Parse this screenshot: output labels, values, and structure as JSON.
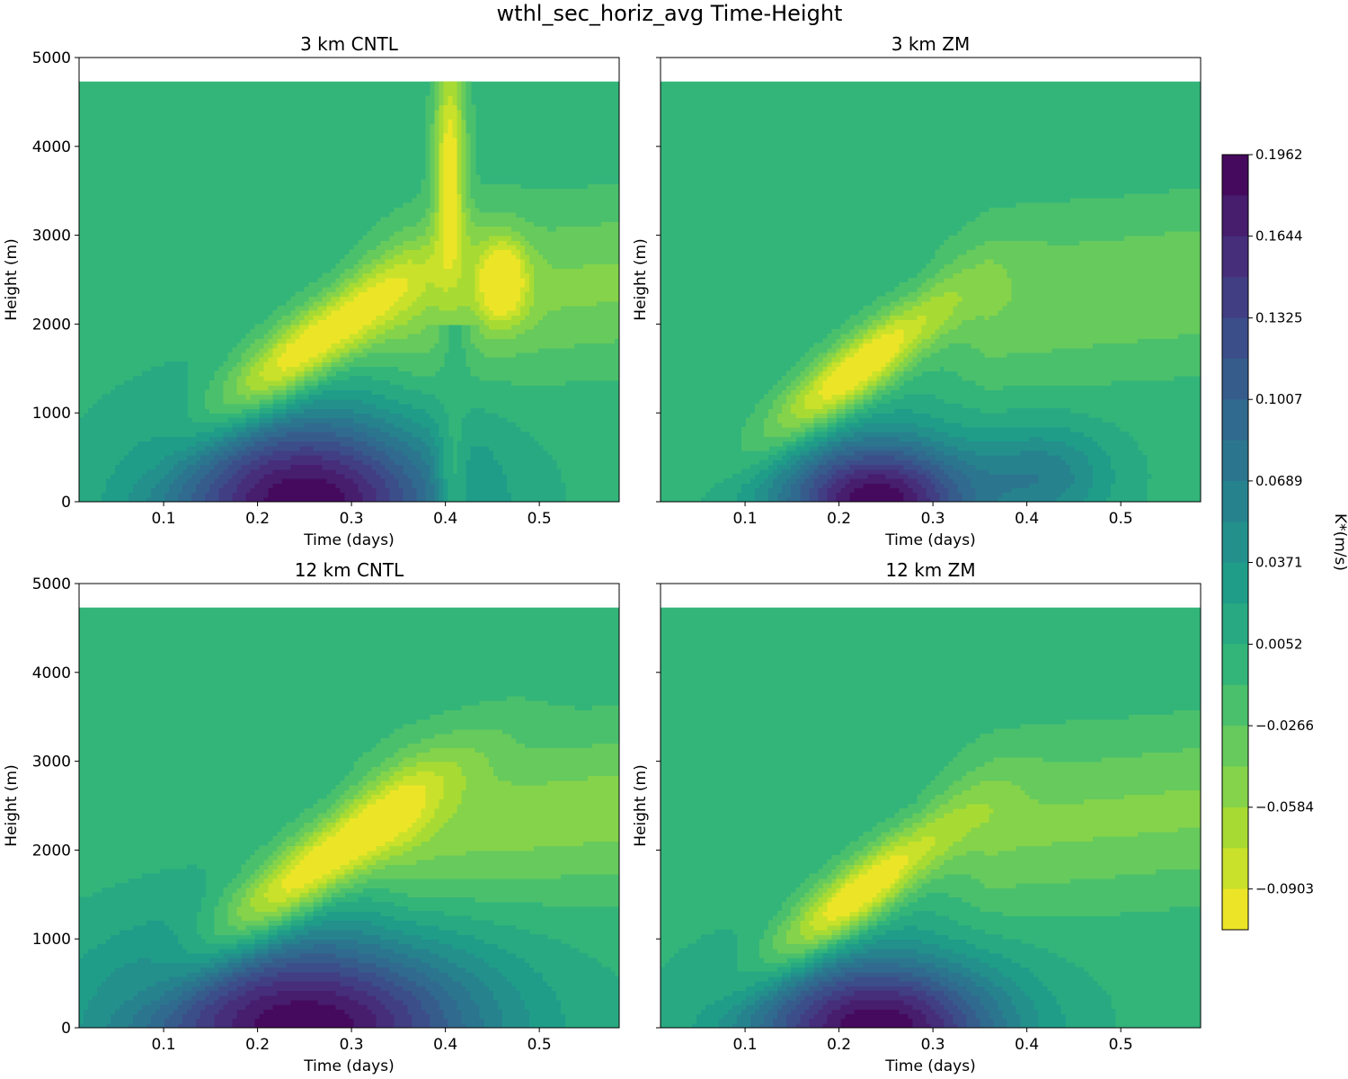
{
  "figure_title": "wthl_sec_horiz_avg Time-Height",
  "chart_data": {
    "type": "contourf",
    "title": "wthl_sec_horiz_avg Time-Height",
    "shared": {
      "xlabel": "Time (days)",
      "ylabel": "Height (m)",
      "xlim": [
        0.01,
        0.585
      ],
      "ylim": [
        0,
        5000
      ],
      "data_top_height": 4730,
      "xticks": [
        0.1,
        0.2,
        0.3,
        0.4,
        0.5
      ],
      "xtick_labels": [
        "0.1",
        "0.2",
        "0.3",
        "0.4",
        "0.5"
      ],
      "yticks": [
        0,
        1000,
        2000,
        3000,
        4000,
        5000
      ],
      "ytick_labels": [
        "0",
        "1000",
        "2000",
        "3000",
        "4000",
        "5000"
      ]
    },
    "panels": [
      {
        "title": "3 km CNTL",
        "show_ytick_labels": true,
        "blob": {
          "t": 0.25,
          "h": 0,
          "rt": 0.185,
          "rh": 1230,
          "peak": 0.1962
        },
        "updraft": {
          "t": 0.255,
          "h": 1750,
          "peak": -0.1062,
          "slope_h_per_day": 7600,
          "sigma_along": 0.105,
          "sigma_h": 320
        },
        "plumes": [
          {
            "t": 0.46,
            "h": 2500,
            "st": 0.018,
            "sh": 320,
            "peak": -0.1
          },
          {
            "t": 0.405,
            "h": 3900,
            "st": 0.012,
            "sh": 850,
            "peak": -0.1
          }
        ],
        "far_anvil": -0.045,
        "cutoff": {
          "t": 0.41,
          "width": 0.012
        }
      },
      {
        "title": "3 km ZM",
        "show_ytick_labels": false,
        "blob": {
          "t": 0.24,
          "h": 0,
          "rt": 0.13,
          "rh": 900,
          "peak": 0.1962
        },
        "updraft": {
          "t": 0.22,
          "h": 1500,
          "peak": -0.1062,
          "slope_h_per_day": 8000,
          "sigma_along": 0.09,
          "sigma_h": 290
        },
        "secondary": [
          {
            "t": 0.42,
            "h": 300,
            "st": 0.05,
            "sh": 400,
            "peak": 0.06
          }
        ],
        "far_anvil": -0.04
      },
      {
        "title": "12 km CNTL",
        "show_ytick_labels": true,
        "blob": {
          "t": 0.25,
          "h": 0,
          "rt": 0.235,
          "rh": 1300,
          "peak": 0.1962
        },
        "updraft": {
          "t": 0.26,
          "h": 1800,
          "peak": -0.1062,
          "slope_h_per_day": 7800,
          "sigma_along": 0.12,
          "sigma_h": 330
        },
        "far_anvil": -0.05
      },
      {
        "title": "12 km ZM",
        "show_ytick_labels": false,
        "blob": {
          "t": 0.24,
          "h": 0,
          "rt": 0.17,
          "rh": 1000,
          "peak": 0.1962
        },
        "updraft": {
          "t": 0.22,
          "h": 1500,
          "peak": -0.1062,
          "slope_h_per_day": 8000,
          "sigma_along": 0.095,
          "sigma_h": 290
        },
        "far_anvil": -0.045
      }
    ],
    "colorbar": {
      "label": "K*(m/s)",
      "min": -0.1062,
      "max": 0.1962,
      "levels": 19,
      "tick_values": [
        0.1962,
        0.1644,
        0.1325,
        0.1007,
        0.0689,
        0.0371,
        0.0052,
        -0.0266,
        -0.0584,
        -0.0903
      ],
      "tick_labels": [
        "0.1962",
        "0.1644",
        "0.1325",
        "0.1007",
        "0.0689",
        "0.0371",
        "0.0052",
        "−0.0266",
        "−0.0584",
        "−0.0903"
      ],
      "colormap": "viridis_r"
    }
  }
}
